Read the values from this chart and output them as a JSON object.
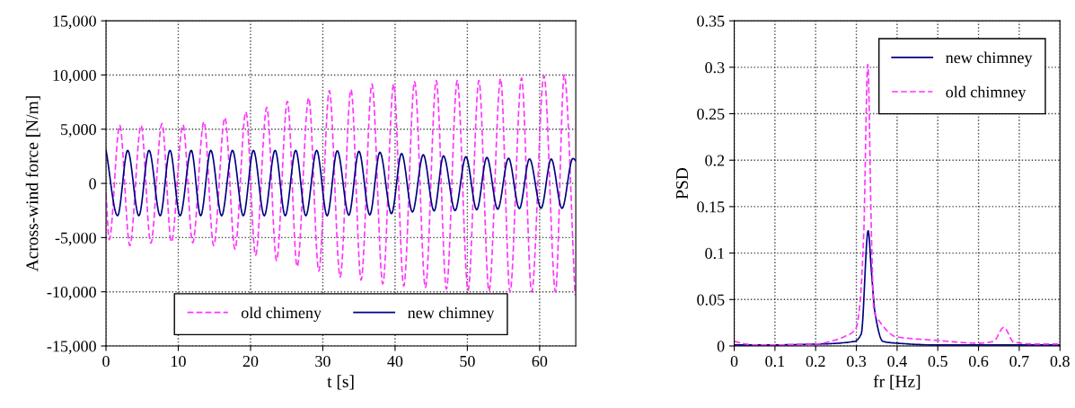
{
  "chart_data": [
    {
      "type": "line",
      "xlabel": "t [s]",
      "ylabel": "Across-wind force [N/m]",
      "xlim": [
        0,
        65
      ],
      "xticks": [
        0,
        10,
        20,
        30,
        40,
        50,
        60
      ],
      "ylim": [
        -15000,
        15000
      ],
      "yticks": [
        {
          "value": -15000,
          "label": "-15,000"
        },
        {
          "value": -10000,
          "label": "-10,000"
        },
        {
          "value": -5000,
          "label": "-5,000"
        },
        0,
        {
          "value": 5000,
          "label": "5,000"
        },
        {
          "value": 10000,
          "label": "10,000"
        },
        {
          "value": 15000,
          "label": "15,000"
        }
      ],
      "grid": true,
      "legend": "bottom",
      "series": [
        {
          "name": "old chimeny",
          "color": "#ff33ff",
          "line_style": "dashed",
          "x": [
            0,
            0.45,
            1.9,
            3.3,
            4.85,
            6.2,
            7.75,
            9.05,
            10.65,
            12.0,
            13.55,
            14.9,
            16.45,
            17.85,
            19.35,
            20.7,
            22.25,
            23.6,
            25.1,
            26.45,
            28.05,
            29.45,
            30.9,
            32.4,
            33.9,
            35.3,
            36.8,
            38.3,
            39.8,
            41.2,
            42.7,
            44.2,
            45.7,
            47.1,
            48.6,
            50.1,
            51.6,
            53.0,
            54.6,
            55.9,
            57.5,
            58.9,
            60.6,
            62.2,
            63.4,
            64.9
          ],
          "values": [
            -900,
            -5190,
            5360,
            -5740,
            5360,
            -5520,
            5530,
            -5410,
            5410,
            -5470,
            5690,
            -5740,
            6070,
            -6070,
            6600,
            -6630,
            7020,
            -7120,
            7570,
            -7680,
            7900,
            -8090,
            8560,
            -8640,
            8670,
            -8920,
            9170,
            -9280,
            9170,
            -9470,
            9390,
            -9610,
            9500,
            -9750,
            9500,
            -9880,
            9500,
            -9940,
            9670,
            -10020,
            9720,
            -10020,
            9940,
            -10000,
            10000,
            -10300
          ]
        },
        {
          "name": "new chimney",
          "color": "#000080",
          "line_style": "solid",
          "x": [
            0,
            1.6,
            3.0,
            4.55,
            5.95,
            7.5,
            8.85,
            10.25,
            11.8,
            13.1,
            14.5,
            16.0,
            17.5,
            19.0,
            20.4,
            21.9,
            23.4,
            24.8,
            26.25,
            27.65,
            29.15,
            30.6,
            32.0,
            33.6,
            35.0,
            36.5,
            37.9,
            39.5,
            40.9,
            42.4,
            43.9,
            45.4,
            46.7,
            48.3,
            49.8,
            51.3,
            52.7,
            54.2,
            55.7,
            57.2,
            58.6,
            60.2,
            61.6,
            63.1,
            64.6,
            65
          ],
          "values": [
            3100,
            -2980,
            3050,
            -2980,
            3050,
            -2980,
            3050,
            -2980,
            3050,
            -2980,
            3050,
            -2980,
            3050,
            -2980,
            3050,
            -2980,
            3050,
            -2980,
            3050,
            -2980,
            3050,
            -2980,
            3010,
            -2920,
            2960,
            -2900,
            2870,
            -2790,
            2760,
            -2630,
            2650,
            -2540,
            2540,
            -2510,
            2460,
            -2430,
            2400,
            -2380,
            2320,
            -2320,
            2260,
            -2290,
            2250,
            -2300,
            2300,
            2100
          ]
        }
      ]
    },
    {
      "type": "line",
      "xlabel": "fr [Hz]",
      "ylabel": "PSD",
      "xlim": [
        0,
        0.8
      ],
      "xticks": [
        0,
        0.1,
        0.2,
        0.3,
        0.4,
        0.5,
        0.6,
        0.7,
        0.8
      ],
      "ylim": [
        0,
        0.35
      ],
      "yticks": [
        0,
        0.05,
        0.1,
        0.15,
        0.2,
        0.25,
        0.3,
        0.35
      ],
      "grid": true,
      "legend": "top right",
      "series": [
        {
          "name": "new chimney",
          "color": "#000080",
          "line_style": "solid",
          "x": [
            0,
            0.056,
            0.2,
            0.296,
            0.312,
            0.329,
            0.337,
            0.346,
            0.365,
            0.4,
            0.5,
            0.6,
            0.7,
            0.8
          ],
          "values": [
            0.001,
            0.001,
            0.002,
            0.005,
            0.013,
            0.124,
            0.08,
            0.035,
            0.005,
            0.003,
            0.001,
            0.001,
            0.001,
            0.001
          ]
        },
        {
          "name": "old chimney",
          "color": "#ff33ff",
          "line_style": "dashed",
          "x": [
            0,
            0.03,
            0.056,
            0.2,
            0.245,
            0.27,
            0.299,
            0.308,
            0.318,
            0.328,
            0.337,
            0.343,
            0.356,
            0.397,
            0.435,
            0.498,
            0.6,
            0.637,
            0.662,
            0.687,
            0.75,
            0.8
          ],
          "values": [
            0.005,
            0.002,
            0.001,
            0.002,
            0.006,
            0.01,
            0.019,
            0.042,
            0.12,
            0.303,
            0.12,
            0.039,
            0.027,
            0.01,
            0.008,
            0.006,
            0.003,
            0.005,
            0.02,
            0.004,
            0.002,
            0.002
          ]
        }
      ]
    }
  ]
}
